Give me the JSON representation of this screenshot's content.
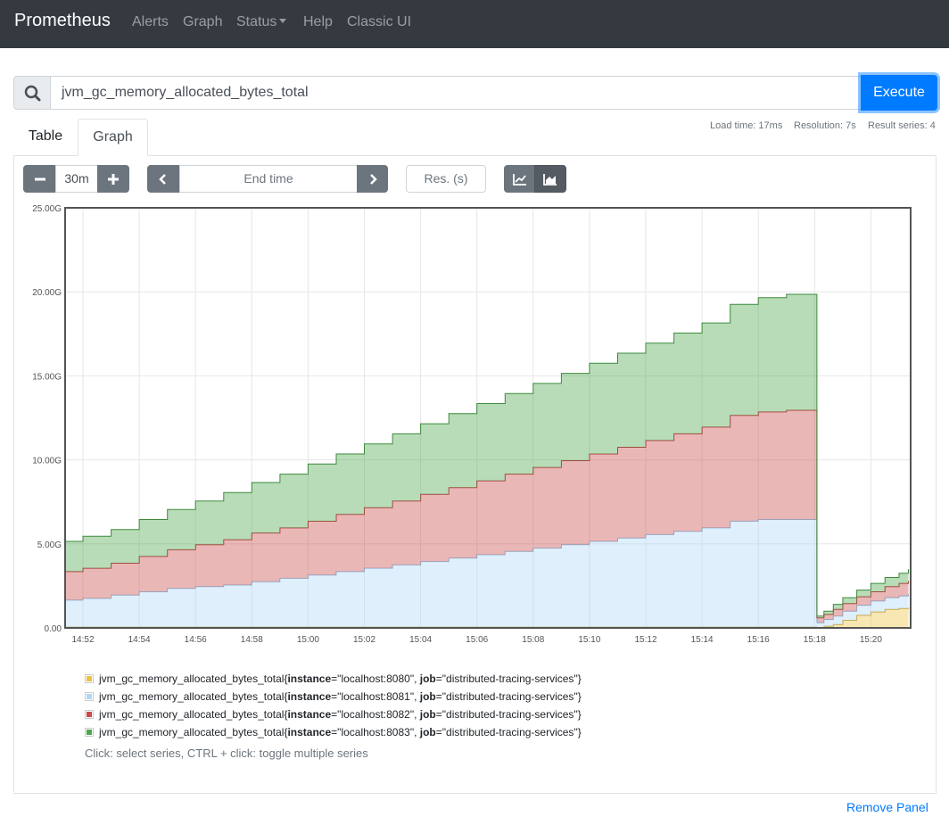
{
  "navbar": {
    "brand": "Prometheus",
    "links": [
      "Alerts",
      "Graph",
      "Status",
      "Help",
      "Classic UI"
    ]
  },
  "query": {
    "expression": "jvm_gc_memory_allocated_bytes_total",
    "execute_label": "Execute"
  },
  "tabs": [
    "Table",
    "Graph"
  ],
  "active_tab": "Graph",
  "stats": {
    "load_time": "Load time: 17ms",
    "resolution": "Resolution: 7s",
    "result_series": "Result series: 4"
  },
  "controls": {
    "range": "30m",
    "end_time_placeholder": "End time",
    "resolution_placeholder": "Res. (s)"
  },
  "colors": {
    "navbar": "#343a40",
    "primary": "#007bff",
    "series": [
      "#edc240",
      "#afd8f8",
      "#cb4b4b",
      "#4da74d"
    ]
  },
  "chart_data": {
    "type": "area",
    "stacked": true,
    "y_tick_labels": [
      "0.00",
      "5.00G",
      "10.00G",
      "15.00G",
      "20.00G",
      "25.00G"
    ],
    "x_tick_labels": [
      "14:52",
      "14:54",
      "14:56",
      "14:58",
      "15:00",
      "15:02",
      "15:04",
      "15:06",
      "15:08",
      "15:10",
      "15:12",
      "15:14",
      "15:16",
      "15:18",
      "15:20"
    ],
    "ylim": [
      0,
      25
    ],
    "y_unit": "G",
    "x": [
      "14:51:20",
      "14:52:00",
      "14:53:00",
      "14:54:00",
      "14:55:00",
      "14:56:00",
      "14:57:00",
      "14:58:00",
      "14:59:00",
      "15:00:00",
      "15:01:00",
      "15:02:00",
      "15:03:00",
      "15:04:00",
      "15:05:00",
      "15:06:00",
      "15:07:00",
      "15:08:00",
      "15:09:00",
      "15:10:00",
      "15:11:00",
      "15:12:00",
      "15:13:00",
      "15:14:00",
      "15:15:00",
      "15:16:00",
      "15:17:00",
      "15:17:50",
      "15:18:05",
      "15:18:20",
      "15:18:40",
      "15:19:00",
      "15:19:30",
      "15:20:00",
      "15:20:30",
      "15:21:00",
      "15:21:20"
    ],
    "series": [
      {
        "name": "jvm_gc_memory_allocated_bytes_total{instance=\"localhost:8080\", job=\"distributed-tracing-services\"}",
        "values": [
          0.05,
          0.05,
          0.05,
          0.05,
          0.05,
          0.05,
          0.05,
          0.05,
          0.05,
          0.05,
          0.05,
          0.05,
          0.05,
          0.05,
          0.05,
          0.05,
          0.05,
          0.05,
          0.05,
          0.05,
          0.05,
          0.05,
          0.05,
          0.05,
          0.05,
          0.05,
          0.05,
          0.05,
          0.0,
          0.1,
          0.2,
          0.45,
          0.75,
          0.95,
          1.1,
          1.15,
          1.2
        ]
      },
      {
        "name": "jvm_gc_memory_allocated_bytes_total{instance=\"localhost:8081\", job=\"distributed-tracing-services\"}",
        "values": [
          1.6,
          1.7,
          1.9,
          2.1,
          2.3,
          2.4,
          2.5,
          2.7,
          2.9,
          3.1,
          3.3,
          3.5,
          3.7,
          3.9,
          4.1,
          4.3,
          4.5,
          4.7,
          4.9,
          5.1,
          5.3,
          5.5,
          5.7,
          5.9,
          6.3,
          6.4,
          6.4,
          6.4,
          0.3,
          0.4,
          0.5,
          0.55,
          0.6,
          0.65,
          0.7,
          0.75,
          0.8
        ]
      },
      {
        "name": "jvm_gc_memory_allocated_bytes_total{instance=\"localhost:8082\", job=\"distributed-tracing-services\"}",
        "values": [
          1.7,
          1.8,
          1.9,
          2.1,
          2.3,
          2.5,
          2.7,
          2.9,
          3.0,
          3.2,
          3.4,
          3.6,
          3.8,
          4.0,
          4.2,
          4.4,
          4.6,
          4.8,
          5.0,
          5.2,
          5.4,
          5.6,
          5.8,
          6.0,
          6.3,
          6.4,
          6.5,
          6.5,
          0.3,
          0.3,
          0.4,
          0.45,
          0.5,
          0.55,
          0.65,
          0.75,
          0.8
        ]
      },
      {
        "name": "jvm_gc_memory_allocated_bytes_total{instance=\"localhost:8083\", job=\"distributed-tracing-services\"}",
        "values": [
          1.8,
          1.9,
          2.0,
          2.2,
          2.4,
          2.6,
          2.8,
          3.0,
          3.2,
          3.4,
          3.6,
          3.8,
          4.0,
          4.2,
          4.4,
          4.6,
          4.8,
          5.0,
          5.2,
          5.4,
          5.6,
          5.8,
          6.0,
          6.2,
          6.6,
          6.8,
          6.9,
          6.9,
          0.1,
          0.2,
          0.3,
          0.35,
          0.4,
          0.5,
          0.55,
          0.6,
          0.7
        ]
      }
    ],
    "legend": [
      {
        "metric": "jvm_gc_memory_allocated_bytes_total",
        "instance": "localhost:8080",
        "job": "distributed-tracing-services"
      },
      {
        "metric": "jvm_gc_memory_allocated_bytes_total",
        "instance": "localhost:8081",
        "job": "distributed-tracing-services"
      },
      {
        "metric": "jvm_gc_memory_allocated_bytes_total",
        "instance": "localhost:8082",
        "job": "distributed-tracing-services"
      },
      {
        "metric": "jvm_gc_memory_allocated_bytes_total",
        "instance": "localhost:8083",
        "job": "distributed-tracing-services"
      }
    ],
    "grid": true,
    "legend_position": "bottom"
  },
  "legend_hint": "Click: select series, CTRL + click: toggle multiple series",
  "remove_panel_label": "Remove Panel",
  "icons": {
    "search": "search-icon",
    "minus": "minus-icon",
    "plus": "plus-icon",
    "prev": "chevron-left-icon",
    "next": "chevron-right-icon",
    "line_mode": "line-chart-icon",
    "stacked_mode": "area-chart-icon"
  }
}
